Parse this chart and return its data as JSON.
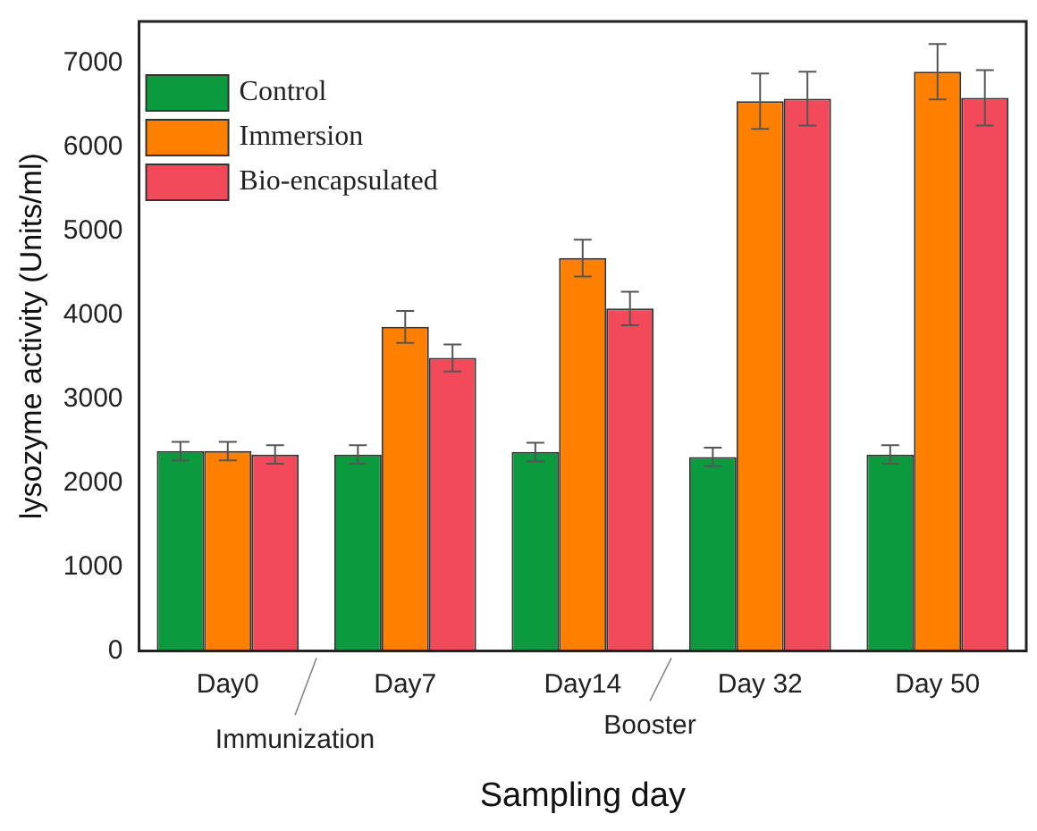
{
  "chart_data": {
    "type": "bar",
    "xlabel": "Sampling day",
    "ylabel": "lysozyme activity (Units/ml)",
    "categories": [
      "Day0",
      "Day7",
      "Day14",
      "Day 32",
      "Day 50"
    ],
    "series": [
      {
        "name": "Control",
        "color": "#0b9a3e",
        "values": [
          2380,
          2340,
          2370,
          2310,
          2340
        ],
        "errors": [
          110,
          110,
          110,
          110,
          110
        ]
      },
      {
        "name": "Immersion",
        "color": "#ff8000",
        "values": [
          2380,
          3860,
          4680,
          6550,
          6900
        ],
        "errors": [
          110,
          190,
          220,
          330,
          330
        ]
      },
      {
        "name": "Bio-encapsulated",
        "color": "#f24a5a",
        "values": [
          2340,
          3490,
          4080,
          6580,
          6590
        ],
        "errors": [
          110,
          160,
          200,
          320,
          330
        ]
      }
    ],
    "ylim": [
      0,
      7500
    ],
    "yticks": [
      0,
      1000,
      2000,
      3000,
      4000,
      5000,
      6000,
      7000
    ],
    "annotations": [
      "Immunization",
      "Booster"
    ],
    "legend": "top left",
    "grid": false
  }
}
